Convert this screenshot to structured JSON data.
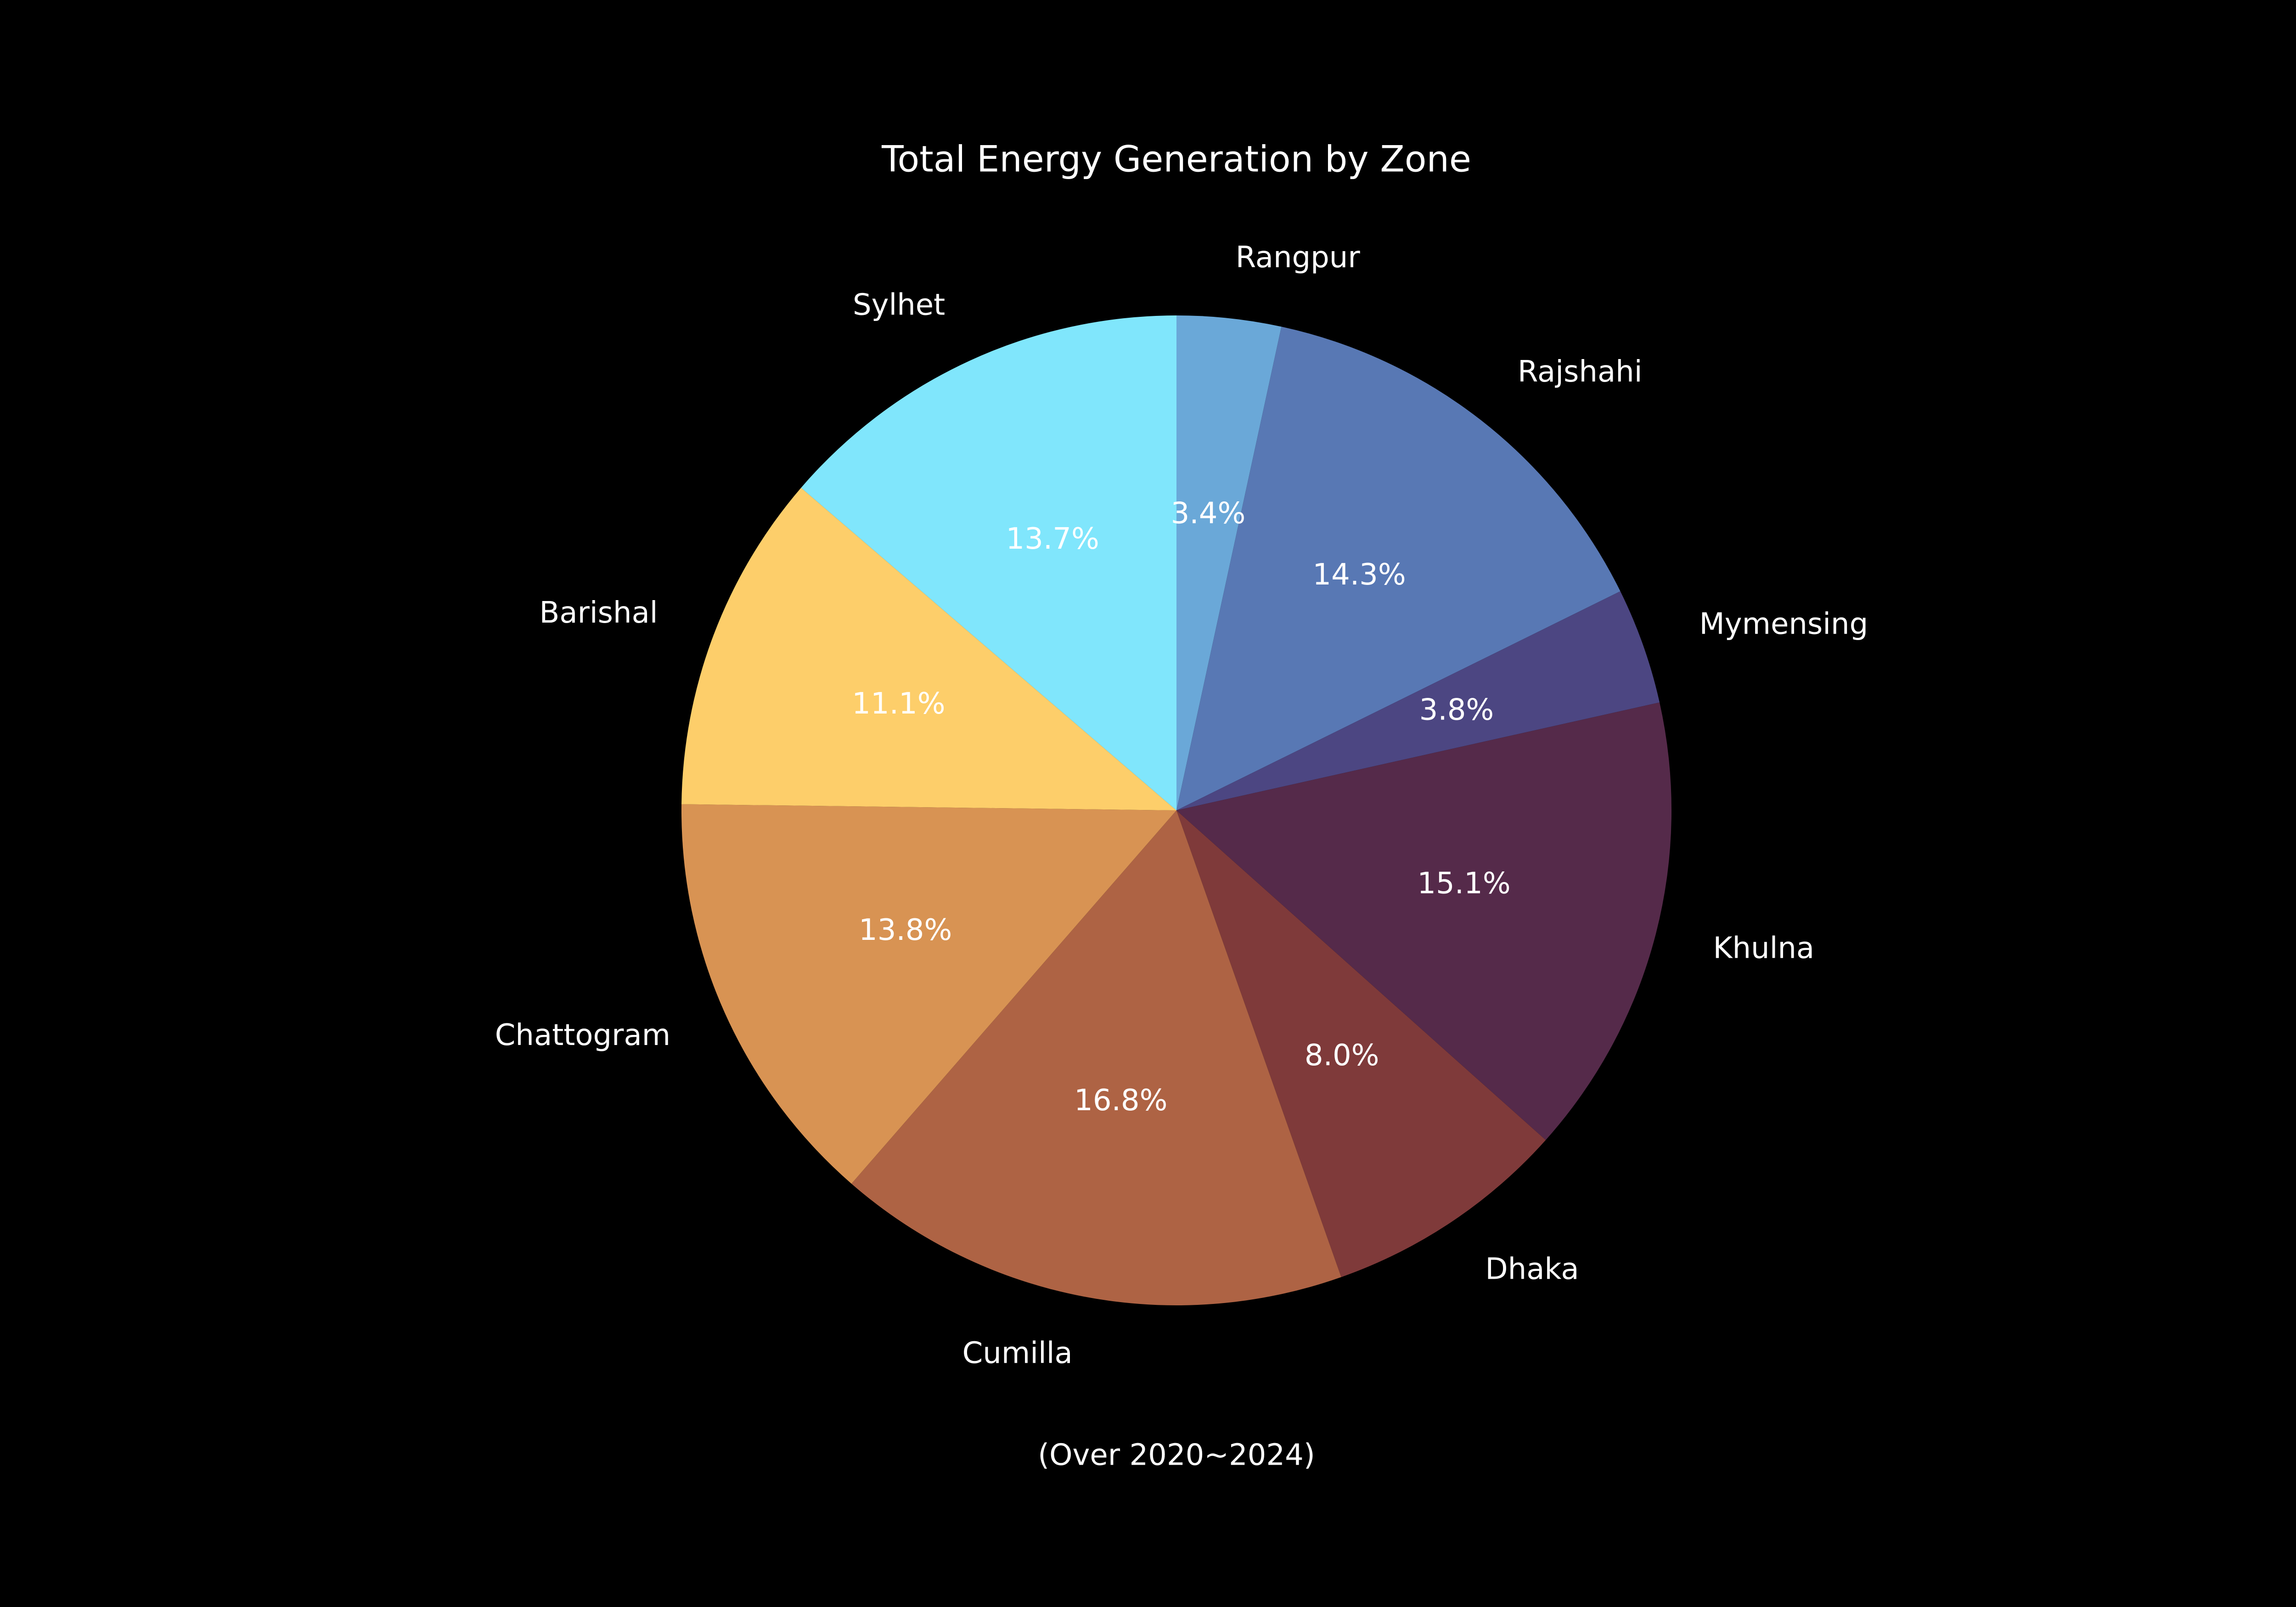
{
  "chart_data": {
    "type": "pie",
    "title": "Total Energy Generation by Zone",
    "subtitle": "(Over 2020~2024)",
    "background": "#000000",
    "start_angle_deg": 90,
    "direction": "clockwise",
    "slices": [
      {
        "label": "Rangpur",
        "pct_label": "3.4%",
        "value": 3.4,
        "color": "#6aa8d8"
      },
      {
        "label": "Rajshahi",
        "pct_label": "14.3%",
        "value": 14.3,
        "color": "#5878b4"
      },
      {
        "label": "Mymensing",
        "pct_label": "3.8%",
        "value": 3.8,
        "color": "#4c4682"
      },
      {
        "label": "Khulna",
        "pct_label": "15.1%",
        "value": 15.1,
        "color": "#552a4a"
      },
      {
        "label": "Dhaka",
        "pct_label": "8.0%",
        "value": 8.0,
        "color": "#7f3a3a"
      },
      {
        "label": "Cumilla",
        "pct_label": "16.8%",
        "value": 16.8,
        "color": "#ae6344"
      },
      {
        "label": "Chattogram",
        "pct_label": "13.8%",
        "value": 13.8,
        "color": "#d89353"
      },
      {
        "label": "Barishal",
        "pct_label": "11.1%",
        "value": 11.1,
        "color": "#fdce6a"
      },
      {
        "label": "Sylhet",
        "pct_label": "13.7%",
        "value": 13.7,
        "color": "#80e6fc"
      }
    ]
  }
}
